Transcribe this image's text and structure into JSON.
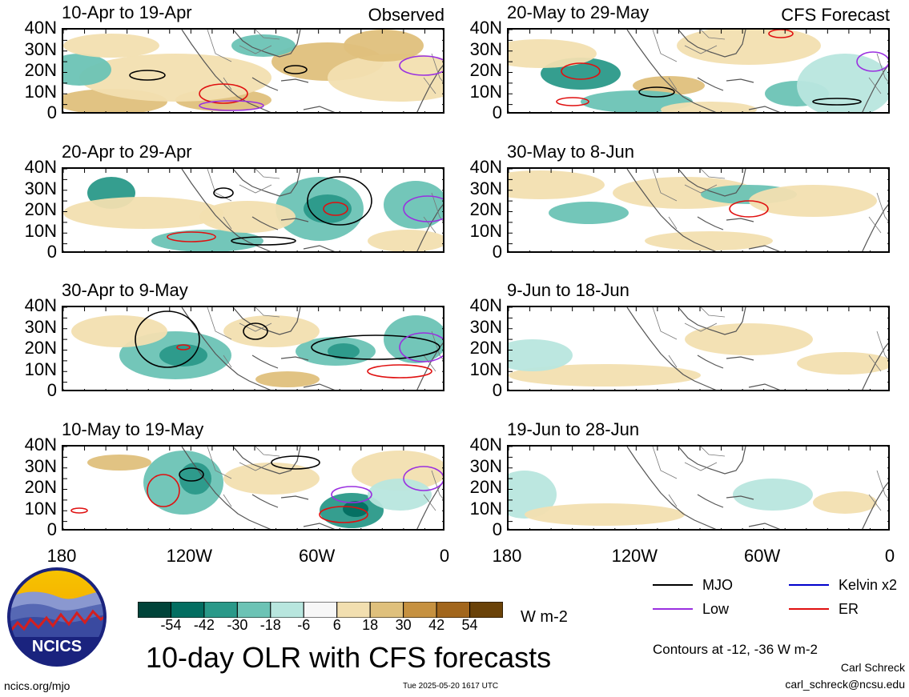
{
  "chart_data": {
    "type": "heatmap",
    "title": "10-day OLR with CFS forecasts",
    "units": "W m-2",
    "y_tick_labels": [
      "40N",
      "30N",
      "20N",
      "10N",
      "0"
    ],
    "x_tick_labels": [
      "180",
      "120W",
      "60W",
      "0"
    ],
    "panels": [
      {
        "period": "10-Apr to 19-Apr",
        "kind": "Observed"
      },
      {
        "period": "20-May to 29-May",
        "kind": "CFS Forecast"
      },
      {
        "period": "20-Apr to 29-Apr",
        "kind": ""
      },
      {
        "period": "30-May to 8-Jun",
        "kind": ""
      },
      {
        "period": "30-Apr to 9-May",
        "kind": ""
      },
      {
        "period": "9-Jun to 18-Jun",
        "kind": ""
      },
      {
        "period": "10-May to 19-May",
        "kind": ""
      },
      {
        "period": "19-Jun to 28-Jun",
        "kind": ""
      }
    ],
    "colorbar": {
      "boundary_labels": [
        "-54",
        "-42",
        "-30",
        "-18",
        "-6",
        "6",
        "18",
        "30",
        "42",
        "54"
      ],
      "colors": [
        "#00443a",
        "#036e61",
        "#2a9989",
        "#6cc3b5",
        "#b8e6de",
        "#f7f7f7",
        "#f2dfb0",
        "#dfc07c",
        "#c69140",
        "#a2661c",
        "#6a4208"
      ]
    },
    "legend": [
      {
        "label": "MJO",
        "color": "#000000"
      },
      {
        "label": "Kelvin x2",
        "color": "#0000cc"
      },
      {
        "label": "Low",
        "color": "#9a30e0"
      },
      {
        "label": "ER",
        "color": "#e01010"
      }
    ],
    "contour_note": "Contours at -12, -36 W m-2"
  },
  "footer": {
    "logo_text": "NCICS",
    "url": "ncics.org/mjo",
    "timestamp": "Tue 2025-05-20 1617 UTC",
    "author": "Carl Schreck",
    "email": "carl_schreck@ncsu.edu"
  }
}
